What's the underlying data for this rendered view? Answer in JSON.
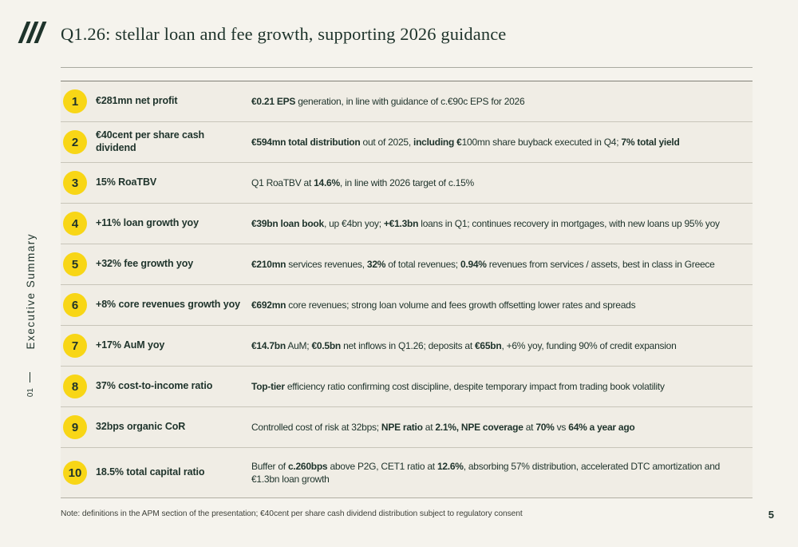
{
  "slide": {
    "title": "Q1.26: stellar loan and fee growth, supporting 2026 guidance",
    "note": "Note: definitions in the APM section of the presentation; €40cent per share cash dividend distribution subject to regulatory consent",
    "page_number": "5"
  },
  "sidebar": {
    "section_label": "Executive Summary",
    "section_number": "01"
  },
  "logo": {
    "icon": "triple-slash-logo"
  },
  "colors": {
    "background": "#f5f3ed",
    "row_background": "#f0ede5",
    "accent_yellow": "#f8d616",
    "dark_green": "#1e332b"
  },
  "rows": [
    {
      "number": "1",
      "label": "€281mn net profit",
      "desc": [
        {
          "t": "€0.21 EPS",
          "b": true
        },
        {
          "t": " generation, in line with guidance of c.€90c EPS for 2026",
          "b": false
        }
      ]
    },
    {
      "number": "2",
      "label": "€40cent per share cash dividend",
      "desc": [
        {
          "t": "€594mn total distribution",
          "b": true
        },
        {
          "t": " out of 2025, ",
          "b": false
        },
        {
          "t": "including €",
          "b": true
        },
        {
          "t": "100mn share buyback executed in Q4; ",
          "b": false
        },
        {
          "t": "7% total yield",
          "b": true
        }
      ]
    },
    {
      "number": "3",
      "label": "15% RoaTBV",
      "desc": [
        {
          "t": "Q1 RoaTBV at ",
          "b": false
        },
        {
          "t": "14.6%",
          "b": true
        },
        {
          "t": ", in line with 2026 target of c.15%",
          "b": false
        }
      ]
    },
    {
      "number": "4",
      "label": "+11% loan growth yoy",
      "desc": [
        {
          "t": "€39bn loan book",
          "b": true
        },
        {
          "t": ", up €4bn yoy; ",
          "b": false
        },
        {
          "t": "+€1.3bn",
          "b": true
        },
        {
          "t": " loans in Q1; continues recovery in mortgages, with new loans up 95% yoy",
          "b": false
        }
      ]
    },
    {
      "number": "5",
      "label": "+32% fee growth yoy",
      "desc": [
        {
          "t": "€210mn",
          "b": true
        },
        {
          "t": " services revenues, ",
          "b": false
        },
        {
          "t": "32%",
          "b": true
        },
        {
          "t": " of total revenues; ",
          "b": false
        },
        {
          "t": "0.94%",
          "b": true
        },
        {
          "t": " revenues from services / assets, best in class in Greece",
          "b": false
        }
      ]
    },
    {
      "number": "6",
      "label": "+8% core revenues growth yoy",
      "desc": [
        {
          "t": "€692mn",
          "b": true
        },
        {
          "t": " core revenues; strong loan volume and fees growth offsetting lower rates and spreads",
          "b": false
        }
      ]
    },
    {
      "number": "7",
      "label": "+17% AuM yoy",
      "desc": [
        {
          "t": "€14.7bn",
          "b": true
        },
        {
          "t": " AuM; ",
          "b": false
        },
        {
          "t": "€0.5bn",
          "b": true
        },
        {
          "t": " net inflows in Q1.26; deposits at ",
          "b": false
        },
        {
          "t": "€65bn",
          "b": true
        },
        {
          "t": ", +6% yoy, funding 90% of credit expansion",
          "b": false
        }
      ]
    },
    {
      "number": "8",
      "label": "37% cost-to-income ratio",
      "desc": [
        {
          "t": "Top-tier",
          "b": true
        },
        {
          "t": " efficiency ratio confirming cost discipline, despite temporary impact from trading book volatility",
          "b": false
        }
      ]
    },
    {
      "number": "9",
      "label": "32bps organic CoR",
      "desc": [
        {
          "t": "Controlled cost of risk at 32bps; ",
          "b": false
        },
        {
          "t": "NPE ratio",
          "b": true
        },
        {
          "t": " at ",
          "b": false
        },
        {
          "t": "2.1%,",
          "b": true
        },
        {
          "t": " ",
          "b": false
        },
        {
          "t": "NPE coverage",
          "b": true
        },
        {
          "t": " at ",
          "b": false
        },
        {
          "t": "70%",
          "b": true
        },
        {
          "t": " vs ",
          "b": false
        },
        {
          "t": "64% a year ago",
          "b": true
        }
      ]
    },
    {
      "number": "10",
      "label": "18.5% total capital ratio",
      "desc": [
        {
          "t": "Buffer of ",
          "b": false
        },
        {
          "t": "c.260bps",
          "b": true
        },
        {
          "t": " above P2G, CET1 ratio at ",
          "b": false
        },
        {
          "t": "12.6%",
          "b": true
        },
        {
          "t": ", absorbing 57% distribution, accelerated DTC amortization and €1.3bn loan  growth",
          "b": false
        }
      ]
    }
  ]
}
